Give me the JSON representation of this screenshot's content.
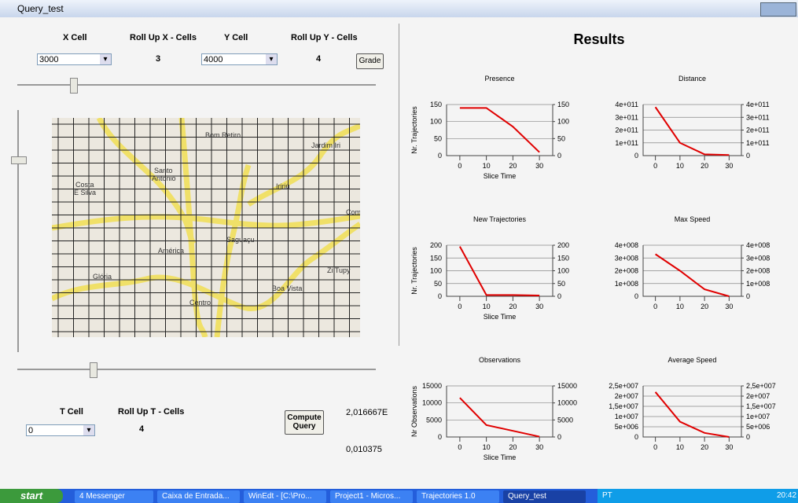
{
  "window": {
    "title": "Query_test"
  },
  "controls": {
    "x_cell_label": "X Cell",
    "rollup_x_label": "Roll Up X - Cells",
    "y_cell_label": "Y Cell",
    "rollup_y_label": "Roll Up Y - Cells",
    "x_cell_value": "3000",
    "rollup_x_value": "3",
    "y_cell_value": "4000",
    "rollup_y_value": "4",
    "grade_button": "Grade",
    "t_cell_label": "T Cell",
    "rollup_t_label": "Roll Up T - Cells",
    "t_cell_value": "0",
    "rollup_t_value": "4",
    "compute_button": "Compute Query",
    "output_1": "2,016667E",
    "output_2": "0,010375"
  },
  "map": {
    "labels": [
      "Bom Retiro",
      "Jardim Iri",
      "Santo",
      "Antônio",
      "Costa",
      "E Silva",
      "Iririú",
      "Com",
      "Saguaçu",
      "América",
      "Glória",
      "Zi Tupy",
      "Boa Vista",
      "Centro"
    ]
  },
  "results": {
    "title": "Results"
  },
  "chart_data": [
    {
      "type": "line",
      "title": "Presence",
      "ylabel": "Nr. Trajectories",
      "xlabel": "Slice Time",
      "x": [
        0,
        10,
        20,
        30
      ],
      "values": [
        140,
        140,
        85,
        10
      ],
      "color": "#e00000",
      "xlim": [
        -5,
        35
      ],
      "xticks": [
        0,
        10,
        20,
        30
      ],
      "ylim": [
        0,
        150
      ],
      "yticks": [
        0,
        50,
        100,
        150
      ],
      "y2lim": [
        0,
        150
      ],
      "y2ticks": [
        0,
        50,
        100,
        150
      ],
      "grid": true
    },
    {
      "type": "line",
      "title": "Distance",
      "x": [
        0,
        10,
        20,
        30
      ],
      "values": [
        380000000000,
        100000000000,
        10000000000,
        5000000000
      ],
      "color": "#e00000",
      "xlim": [
        -5,
        35
      ],
      "xticks": [
        0,
        10,
        20,
        30
      ],
      "ylim": [
        0,
        400000000000
      ],
      "yticks": [
        0,
        {
          "value": 100000000000,
          "label": "1e+011"
        },
        {
          "value": 200000000000,
          "label": "2e+011"
        },
        {
          "value": 300000000000,
          "label": "3e+011"
        },
        {
          "value": 400000000000,
          "label": "4e+011"
        }
      ],
      "y2lim": [
        0,
        400000000000
      ],
      "y2ticks": [
        0,
        {
          "value": 100000000000,
          "label": "1e+011"
        },
        {
          "value": 200000000000,
          "label": "2e+011"
        },
        {
          "value": 300000000000,
          "label": "3e+011"
        },
        {
          "value": 400000000000,
          "label": "4e+011"
        }
      ],
      "grid": true
    },
    {
      "type": "line",
      "title": "New Trajectories",
      "ylabel": "Nr. Trajectories",
      "xlabel": "Slice Time",
      "x": [
        0,
        10,
        20,
        30
      ],
      "values": [
        195,
        5,
        5,
        3
      ],
      "color": "#e00000",
      "xlim": [
        -5,
        35
      ],
      "xticks": [
        0,
        10,
        20,
        30
      ],
      "ylim": [
        0,
        200
      ],
      "yticks": [
        0,
        50,
        100,
        150,
        200
      ],
      "y2lim": [
        0,
        200
      ],
      "y2ticks": [
        0,
        50,
        100,
        150,
        200
      ],
      "grid": true
    },
    {
      "type": "line",
      "title": "Max Speed",
      "x": [
        0,
        10,
        20,
        30
      ],
      "values": [
        330000000,
        200000000,
        55000000,
        0
      ],
      "color": "#e00000",
      "xlim": [
        -5,
        35
      ],
      "xticks": [
        0,
        10,
        20,
        30
      ],
      "ylim": [
        0,
        400000000
      ],
      "yticks": [
        0,
        {
          "value": 100000000,
          "label": "1e+008"
        },
        {
          "value": 200000000,
          "label": "2e+008"
        },
        {
          "value": 300000000,
          "label": "3e+008"
        },
        {
          "value": 400000000,
          "label": "4e+008"
        }
      ],
      "y2lim": [
        0,
        400000000
      ],
      "y2ticks": [
        0,
        {
          "value": 100000000,
          "label": "1e+008"
        },
        {
          "value": 200000000,
          "label": "2e+008"
        },
        {
          "value": 300000000,
          "label": "3e+008"
        },
        {
          "value": 400000000,
          "label": "4e+008"
        }
      ],
      "grid": true
    },
    {
      "type": "line",
      "title": "Observations",
      "ylabel": "Nr Observations",
      "xlabel": "Slice Time",
      "x": [
        0,
        10,
        20,
        30
      ],
      "values": [
        11500,
        3500,
        1800,
        100
      ],
      "color": "#e00000",
      "xlim": [
        -5,
        35
      ],
      "xticks": [
        0,
        10,
        20,
        30
      ],
      "ylim": [
        0,
        15000
      ],
      "yticks": [
        0,
        5000,
        10000,
        15000
      ],
      "y2lim": [
        0,
        15000
      ],
      "y2ticks": [
        0,
        5000,
        10000,
        15000
      ],
      "grid": true
    },
    {
      "type": "line",
      "title": "Average Speed",
      "x": [
        0,
        10,
        20,
        30
      ],
      "values": [
        22000000,
        7500000,
        2000000,
        0
      ],
      "color": "#e00000",
      "xlim": [
        -5,
        35
      ],
      "xticks": [
        0,
        10,
        20,
        30
      ],
      "ylim": [
        0,
        25000000
      ],
      "yticks": [
        0,
        {
          "value": 5000000,
          "label": "5e+006"
        },
        {
          "value": 10000000,
          "label": "1e+007"
        },
        {
          "value": 15000000,
          "label": "1,5e+007"
        },
        {
          "value": 20000000,
          "label": "2e+007"
        },
        {
          "value": 25000000,
          "label": "2,5e+007"
        }
      ],
      "y2lim": [
        0,
        25000000
      ],
      "y2ticks": [
        0,
        {
          "value": 5000000,
          "label": "5e+006"
        },
        {
          "value": 10000000,
          "label": "1e+007"
        },
        {
          "value": 15000000,
          "label": "1,5e+007"
        },
        {
          "value": 20000000,
          "label": "2e+007"
        },
        {
          "value": 25000000,
          "label": "2,5e+007"
        }
      ],
      "grid": true
    }
  ],
  "taskbar": {
    "start": "start",
    "items": [
      "4 Messenger",
      "Caixa de Entrada...",
      "WinEdt - [C:\\Pro...",
      "Project1 - Micros...",
      "Trajectories 1.0",
      "Query_test"
    ],
    "language": "PT",
    "clock": "20:42"
  }
}
